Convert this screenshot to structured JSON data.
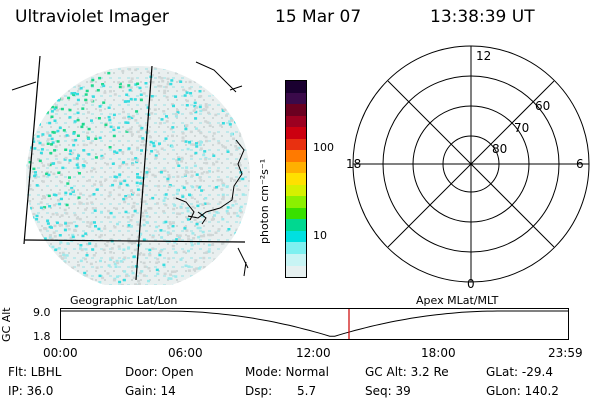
{
  "header": {
    "instrument": "Ultraviolet Imager",
    "date": "15 Mar 07",
    "time": "13:38:39 UT"
  },
  "colorbar": {
    "unit_label": "photon cm⁻²s⁻¹",
    "tick_labels": [
      "100",
      "10"
    ],
    "colors": [
      "#1a0030",
      "#3a0a4a",
      "#6a0020",
      "#9c0020",
      "#cc0010",
      "#e83010",
      "#ff7a00",
      "#ffb000",
      "#ffe000",
      "#d6f000",
      "#8cf000",
      "#38e000",
      "#00d890",
      "#00e0e0",
      "#7ef0f0",
      "#c8f4f4",
      "#e6f0f0"
    ]
  },
  "polar": {
    "mlt_labels": {
      "top": "12",
      "left": "18",
      "right": "6",
      "bottom": "0"
    },
    "lat_labels": [
      "60",
      "70",
      "80"
    ]
  },
  "timeline": {
    "left_caption": "Geographic Lat/Lon",
    "right_caption": "Apex MLat/MLT",
    "y_axis_label": "GC Alt",
    "y_ticks": [
      "9.0",
      "1.8"
    ],
    "x_ticks": [
      "00:00",
      "06:00",
      "12:00",
      "18:00",
      "23:59"
    ],
    "current_time_fraction": 0.568,
    "marker_color": "#cc0000"
  },
  "status": {
    "flt": "Flt: LBHL",
    "ip": "IP: 36.0",
    "door": "Door: Open",
    "gain": "Gain: 14",
    "mode": "Mode: Normal",
    "dsp_label": "Dsp:",
    "dsp_value": "5.7",
    "gc_alt": "GC Alt: 3.2 Re",
    "seq": "Seq: 39",
    "glat": "GLat: -29.4",
    "glon": "GLon: 140.2"
  }
}
